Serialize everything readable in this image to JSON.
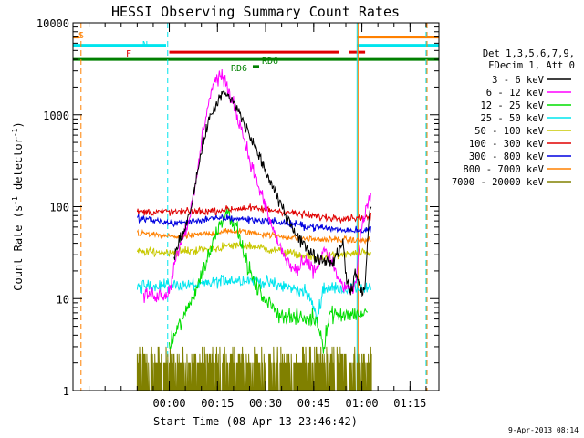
{
  "chart_data": {
    "type": "line",
    "title": "HESSI Observing Summary Count Rates",
    "xlabel": "Start Time (08-Apr-13 23:46:42)",
    "ylabel": "Count Rate (s⁻¹ detector⁻¹)",
    "ylabel_parts": [
      "Count Rate (s",
      "-1",
      " detector",
      "-1",
      ")"
    ],
    "y_scale": "log",
    "ylim": [
      1,
      10000
    ],
    "xlim_minutes": [
      -16,
      98
    ],
    "x_tick_labels": [
      {
        "t": 14,
        "label": "00:00"
      },
      {
        "t": 29,
        "label": "00:15"
      },
      {
        "t": 44,
        "label": "00:30"
      },
      {
        "t": 59,
        "label": "00:45"
      },
      {
        "t": 74,
        "label": "01:00"
      },
      {
        "t": 89,
        "label": "01:15"
      }
    ],
    "y_tick_labels": [
      {
        "v": 1,
        "label": "1"
      },
      {
        "v": 10,
        "label": "10"
      },
      {
        "v": 100,
        "label": "100"
      },
      {
        "v": 1000,
        "label": "1000"
      },
      {
        "v": 10000,
        "label": "10000"
      }
    ],
    "legend": {
      "placement": "right",
      "header": [
        "Det 1,3,5,6,7,9,",
        "FDecim 1, Att 0"
      ],
      "entries": [
        {
          "label": "3 - 6 keV",
          "color": "#000000"
        },
        {
          "label": "6 - 12 keV",
          "color": "#ff00ff"
        },
        {
          "label": "12 - 25 keV",
          "color": "#00dd00"
        },
        {
          "label": "25 - 50 keV",
          "color": "#00e5ee"
        },
        {
          "label": "50 - 100 keV",
          "color": "#c8c800"
        },
        {
          "label": "100 - 300 keV",
          "color": "#e00000"
        },
        {
          "label": "300 - 800 keV",
          "color": "#0000e0"
        },
        {
          "label": "800 - 7000 keV",
          "color": "#ff8000"
        },
        {
          "label": "7000 - 20000 keV",
          "color": "#808000"
        }
      ]
    },
    "flag_labels": [
      {
        "text": "S",
        "color": "#ff8000"
      },
      {
        "text": "N",
        "color": "#00e5ee"
      },
      {
        "text": "F",
        "color": "#e00000"
      },
      {
        "text": "RD6",
        "color": "#008000"
      },
      {
        "text": "RD6",
        "color": "#008000"
      }
    ],
    "flag_bars": [
      {
        "name": "S",
        "color": "#ff8000",
        "v": 7000,
        "segments": [
          [
            -16,
            -14
          ],
          [
            72.5,
            98
          ]
        ]
      },
      {
        "name": "N",
        "color": "#00e5ee",
        "v": 5700,
        "segments": [
          [
            -16,
            13
          ],
          [
            72.5,
            98
          ]
        ]
      },
      {
        "name": "F",
        "color": "#e00000",
        "v": 4800,
        "segments": [
          [
            14,
            67
          ],
          [
            70,
            75
          ]
        ]
      },
      {
        "name": "Night",
        "color": "#008000",
        "v": 4000,
        "segments": [
          [
            -16,
            98
          ]
        ]
      },
      {
        "name": "RD6",
        "color": "#008000",
        "v": 3350,
        "segments": [
          [
            40,
            42
          ]
        ]
      }
    ],
    "vlines": [
      {
        "t": -16,
        "color": "#00e5ee",
        "dash": false
      },
      {
        "t": -13.5,
        "color": "#ff8000",
        "dash": true
      },
      {
        "t": 13.5,
        "color": "#00e5ee",
        "dash": true
      },
      {
        "t": 72.5,
        "color": "#00e5ee",
        "dash": false
      },
      {
        "t": 72.8,
        "color": "#ff8000",
        "dash": false
      },
      {
        "t": 94,
        "color": "#00e5ee",
        "dash": true
      },
      {
        "t": 94.3,
        "color": "#ff8000",
        "dash": true
      }
    ],
    "series": [
      {
        "name": "3 - 6 keV",
        "color": "#000000",
        "noise": 0.06,
        "start": 15.5,
        "end": 77,
        "x": [
          15.5,
          17,
          19,
          21,
          23,
          25,
          27,
          29,
          31,
          33,
          35,
          37,
          39,
          41,
          43,
          45,
          47,
          49,
          51,
          53,
          55,
          57,
          59,
          61,
          63,
          65,
          67,
          68,
          69,
          70,
          71,
          72,
          73,
          74,
          75,
          76,
          77
        ],
        "values": [
          30,
          40,
          60,
          110,
          260,
          600,
          1000,
          1400,
          1700,
          1500,
          1200,
          850,
          600,
          420,
          300,
          200,
          140,
          100,
          75,
          55,
          42,
          35,
          30,
          27,
          26,
          25,
          35,
          45,
          18,
          13,
          12,
          20,
          15,
          12,
          13,
          60,
          120
        ]
      },
      {
        "name": "6 - 12 keV",
        "color": "#ff00ff",
        "noise": 0.07,
        "start": 6,
        "end": 77,
        "x": [
          6,
          8,
          10,
          12,
          14,
          16,
          18,
          20,
          22,
          24,
          26,
          28,
          30,
          32,
          34,
          36,
          38,
          40,
          42,
          44,
          46,
          48,
          50,
          52,
          54,
          56,
          58,
          60,
          62,
          64,
          66,
          68,
          70,
          72,
          74,
          76,
          77
        ],
        "values": [
          11,
          11,
          11,
          11,
          12,
          28,
          45,
          70,
          150,
          500,
          1300,
          2300,
          2700,
          2000,
          1300,
          800,
          450,
          250,
          160,
          100,
          60,
          40,
          28,
          22,
          20,
          25,
          22,
          20,
          35,
          28,
          18,
          14,
          12,
          14,
          60,
          110,
          140
        ]
      },
      {
        "name": "12 - 25 keV",
        "color": "#00dd00",
        "noise": 0.08,
        "start": 14,
        "end": 76,
        "x": [
          14,
          17,
          20,
          22,
          24,
          26,
          28,
          30,
          32,
          34,
          36,
          38,
          40,
          42,
          44,
          46,
          48,
          50,
          52,
          54,
          56,
          58,
          60,
          62,
          64,
          66,
          68,
          70,
          72,
          74,
          76
        ],
        "values": [
          3,
          5,
          8,
          12,
          18,
          28,
          45,
          70,
          90,
          70,
          45,
          25,
          16,
          12,
          10,
          8,
          7,
          6.5,
          6.3,
          6.1,
          6,
          6,
          6,
          3,
          7,
          6.8,
          6.8,
          6.8,
          6.8,
          6.8,
          7
        ]
      },
      {
        "name": "25 - 50 keV",
        "color": "#00e5ee",
        "noise": 0.06,
        "start": 4,
        "end": 77,
        "x": [
          4,
          8,
          12,
          16,
          20,
          24,
          28,
          32,
          36,
          40,
          44,
          48,
          52,
          56,
          58,
          60,
          62,
          64,
          68,
          72,
          76
        ],
        "values": [
          13,
          14,
          14,
          14,
          14,
          14,
          15,
          16,
          16,
          16,
          15,
          14,
          13,
          12,
          10,
          6,
          13,
          13,
          13,
          13,
          13
        ]
      },
      {
        "name": "50 - 100 keV",
        "color": "#c8c800",
        "noise": 0.04,
        "start": 4,
        "end": 77,
        "x": [
          4,
          8,
          12,
          16,
          20,
          24,
          28,
          32,
          36,
          40,
          44,
          48,
          52,
          56,
          60,
          64,
          68,
          72,
          76
        ],
        "values": [
          32,
          32,
          32,
          32,
          33,
          34,
          35,
          37,
          38,
          37,
          35,
          33,
          31,
          29,
          27,
          29,
          30,
          31,
          31
        ]
      },
      {
        "name": "100 - 300 keV",
        "color": "#e00000",
        "noise": 0.035,
        "start": 4,
        "end": 77,
        "x": [
          4,
          8,
          12,
          16,
          20,
          24,
          28,
          32,
          36,
          40,
          44,
          48,
          52,
          56,
          60,
          64,
          68,
          72,
          76
        ],
        "values": [
          88,
          88,
          88,
          88,
          88,
          89,
          90,
          93,
          96,
          96,
          93,
          90,
          86,
          82,
          78,
          76,
          76,
          76,
          76
        ]
      },
      {
        "name": "300 - 800 keV",
        "color": "#0000e0",
        "noise": 0.035,
        "start": 4,
        "end": 77,
        "x": [
          4,
          8,
          12,
          16,
          20,
          24,
          28,
          32,
          36,
          40,
          44,
          48,
          52,
          56,
          60,
          64,
          68,
          72,
          76
        ],
        "values": [
          75,
          72,
          68,
          66,
          68,
          72,
          74,
          75,
          74,
          72,
          70,
          68,
          65,
          62,
          60,
          58,
          56,
          56,
          56
        ]
      },
      {
        "name": "800 - 7000 keV",
        "color": "#ff8000",
        "noise": 0.03,
        "start": 4,
        "end": 77,
        "x": [
          4,
          8,
          12,
          16,
          20,
          24,
          28,
          32,
          36,
          40,
          44,
          48,
          52,
          56,
          60,
          64,
          68,
          72,
          76
        ],
        "values": [
          52,
          50,
          48,
          47,
          48,
          50,
          52,
          54,
          54,
          52,
          50,
          48,
          46,
          45,
          44,
          44,
          44,
          43,
          43
        ]
      },
      {
        "name": "7000 - 20000 keV",
        "color": "#808000",
        "noise": 0,
        "start": 4,
        "end": 77,
        "x": [
          4,
          77
        ],
        "values": [
          2,
          2
        ]
      }
    ],
    "timestamp": "9-Apr-2013 08:14"
  }
}
